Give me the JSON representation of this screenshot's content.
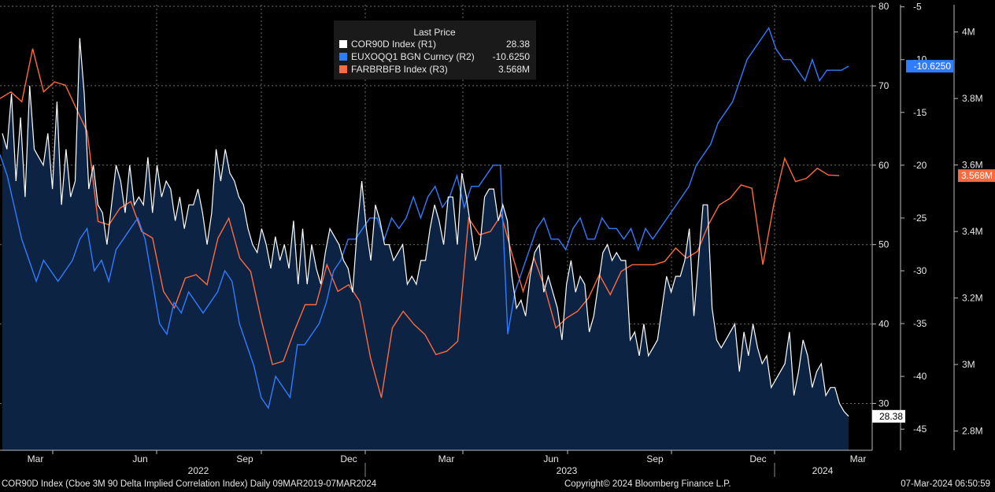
{
  "chart_data": {
    "type": "line",
    "title": "Last Price",
    "x_axis": {
      "months": [
        "Mar",
        "Jun",
        "Sep",
        "Dec",
        "Mar",
        "Jun",
        "Sep",
        "Dec",
        "Mar"
      ],
      "years": [
        "2022",
        "2023",
        "2024"
      ]
    },
    "y_axes": {
      "R1": {
        "ticks": [
          30,
          40,
          50,
          60,
          70,
          80
        ],
        "ylim": [
          24.1,
          80.2
        ]
      },
      "R2": {
        "ticks": [
          -45,
          -40,
          -35,
          -30,
          -25,
          -20,
          -15,
          -10,
          -5
        ],
        "ylim": [
          -47,
          -4.8
        ]
      },
      "R3": {
        "ticks": [
          "2.8M",
          "3M",
          "3.2M",
          "3.4M",
          "3.6M",
          "3.8M",
          "4M"
        ],
        "tick_values": [
          2.8,
          3.0,
          3.2,
          3.4,
          3.6,
          3.8,
          4.0
        ],
        "ylim": [
          2.742,
          4.082
        ]
      }
    },
    "series": [
      {
        "name": "COR90D Index",
        "axis": "R1",
        "color": "#ffffff",
        "last": "28.38",
        "last_label": "28.38",
        "values": [
          64,
          62,
          69,
          58,
          66,
          56,
          70,
          62,
          61,
          60,
          64,
          57,
          68,
          55,
          62,
          56,
          58,
          76,
          69,
          57,
          60,
          55,
          54,
          50,
          55,
          60,
          58,
          54,
          60,
          55,
          56,
          55,
          61,
          54,
          60,
          56,
          58,
          57,
          53,
          56,
          52,
          55,
          55,
          57,
          54,
          50,
          54,
          62,
          58,
          62,
          59,
          58,
          56,
          55,
          52,
          50,
          49,
          52,
          50,
          47,
          51,
          48,
          50,
          47,
          53,
          45,
          52,
          45,
          50,
          47,
          45,
          49,
          52,
          51,
          50,
          48,
          47,
          44,
          52,
          58,
          52,
          48,
          55,
          53,
          50,
          50,
          48,
          49,
          50,
          45,
          46,
          45,
          48,
          48,
          52,
          55,
          53,
          50,
          56,
          56,
          50,
          59,
          56,
          52,
          48,
          50,
          56,
          57,
          57,
          53,
          55,
          53,
          46,
          42,
          43,
          41,
          46,
          49,
          50,
          44,
          46,
          44,
          42,
          38,
          45,
          48,
          44,
          46,
          45,
          39,
          41,
          45,
          49,
          50,
          48,
          49,
          48,
          48,
          38,
          39,
          36,
          40,
          36,
          37,
          38,
          42,
          46,
          44,
          46,
          46,
          48,
          52,
          41,
          48,
          55,
          55,
          42,
          38,
          37,
          38,
          39,
          40,
          34,
          39,
          36,
          40,
          37,
          35,
          36,
          32,
          33,
          34,
          35,
          39,
          31,
          34,
          38,
          36,
          32,
          34,
          35,
          31,
          32,
          32,
          30,
          29,
          28.38
        ],
        "note": "weekly COR90D level (approx., left R1 axis) shown filled"
      },
      {
        "name": "EUXOQQ1 BGN Curncy",
        "axis": "R2",
        "color": "#2f7cff",
        "last": "-10.6250",
        "last_label": "-10.6250",
        "values": [
          -19,
          -21,
          -24,
          -27,
          -29,
          -31,
          -29,
          -30,
          -31,
          -30,
          -29,
          -27,
          -26,
          -30,
          -29,
          -31,
          -28,
          -27,
          -26,
          -25,
          -27,
          -31,
          -35,
          -36,
          -33,
          -34,
          -32,
          -33,
          -34,
          -33,
          -32,
          -30,
          -31,
          -35,
          -37,
          -39,
          -42,
          -43,
          -40,
          -41,
          -42,
          -37,
          -37,
          -36,
          -35,
          -33,
          -30,
          -29,
          -27,
          -27,
          -26,
          -25,
          -25,
          -27,
          -25,
          -26,
          -25,
          -23,
          -25,
          -23,
          -22,
          -24,
          -23,
          -21,
          -24,
          -22,
          -22,
          -21,
          -20,
          -20,
          -36,
          -32,
          -30,
          -28,
          -26,
          -25,
          -27,
          -27,
          -28,
          -26,
          -25,
          -27,
          -27,
          -25,
          -26,
          -26,
          -27,
          -26,
          -28,
          -26,
          -27,
          -26,
          -25,
          -24,
          -23,
          -22,
          -20,
          -19,
          -18,
          -16,
          -15,
          -14,
          -12,
          -10,
          -9,
          -8,
          -7,
          -9,
          -10,
          -10,
          -11,
          -12,
          -10,
          -12,
          -11,
          -11,
          -11,
          -10.625
        ],
        "note": "weekly EUXOQQ1 values (approx., R2 axis)"
      },
      {
        "name": "FARBRBFB Index",
        "axis": "R3",
        "color": "#ff6a3d",
        "last": "3.568M",
        "last_label": "3.568M",
        "values": [
          3.8,
          3.82,
          3.79,
          3.95,
          3.82,
          3.85,
          3.84,
          3.77,
          3.7,
          3.43,
          3.42,
          3.47,
          3.49,
          3.4,
          3.38,
          3.22,
          3.17,
          3.26,
          3.27,
          3.24,
          3.38,
          3.44,
          3.32,
          3.28,
          3.13,
          3.0,
          3.01,
          3.1,
          3.18,
          3.18,
          3.3,
          3.22,
          3.24,
          3.19,
          3.02,
          2.9,
          3.11,
          3.16,
          3.12,
          3.09,
          3.03,
          3.04,
          3.07,
          3.44,
          3.39,
          3.4,
          3.45,
          3.33,
          3.22,
          3.32,
          3.23,
          3.11,
          3.14,
          3.16,
          3.2,
          3.27,
          3.21,
          3.28,
          3.3,
          3.3,
          3.3,
          3.31,
          3.35,
          3.32,
          3.34,
          3.42,
          3.48,
          3.5,
          3.54,
          3.53,
          3.3,
          3.48,
          3.62,
          3.55,
          3.56,
          3.59,
          3.57,
          3.568
        ],
        "note": "FARBRBFB (approx., R3 axis)"
      }
    ]
  },
  "legend": {
    "header": "Last Price",
    "items": [
      {
        "label": "COR90D Index  (R1)",
        "value": "28.38",
        "color": "#ffffff"
      },
      {
        "label": "EUXOQQ1 BGN Curncy  (R2)",
        "value": "-10.6250",
        "color": "#2f7cff"
      },
      {
        "label": "FARBRBFB Index  (R3)",
        "value": "3.568M",
        "color": "#ff6a3d"
      }
    ]
  },
  "footer": {
    "title": "COR90D Index (Cboe 3M 90 Delta Implied Correlation Index)  Daily 09MAR2019-07MAR2024",
    "copyright": "Copyright© 2024 Bloomberg Finance L.P.",
    "timestamp": "07-Mar-2024 06:50:59"
  },
  "colors": {
    "background": "#000000",
    "fill": "#0d2344",
    "grid": "#6e6e6e",
    "cor": "#ffffff",
    "euxo": "#2f7cff",
    "farb": "#ff6a3d"
  }
}
